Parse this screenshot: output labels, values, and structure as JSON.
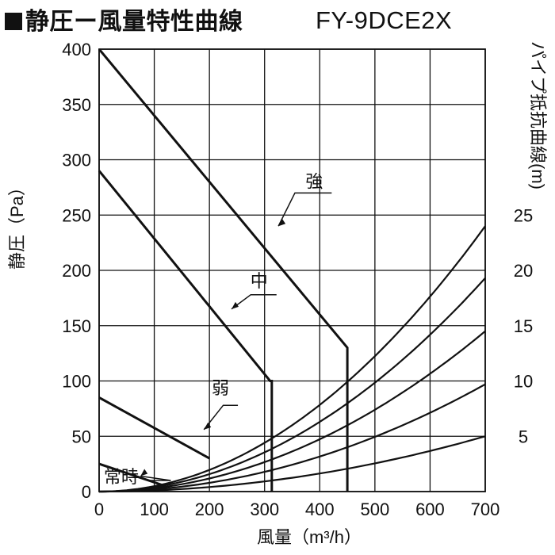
{
  "title": "静圧ー風量特性曲線",
  "model": "FY-9DCE2X",
  "chart_data": {
    "type": "line",
    "xlabel": "風量（m³/h）",
    "ylabel": "静圧（Pa）",
    "ylabel_right": "パイプ抵抗曲線(m)",
    "xlim": [
      0,
      700
    ],
    "ylim": [
      0,
      400
    ],
    "grid": true,
    "x_ticks": [
      0,
      100,
      200,
      300,
      400,
      500,
      600,
      700
    ],
    "y_ticks": [
      0,
      50,
      100,
      150,
      200,
      250,
      300,
      350,
      400
    ],
    "right_ticks": [
      {
        "label": "5",
        "y": 50
      },
      {
        "label": "10",
        "y": 100
      },
      {
        "label": "15",
        "y": 150
      },
      {
        "label": "20",
        "y": 200
      },
      {
        "label": "25",
        "y": 250
      }
    ],
    "series": [
      {
        "name": "強",
        "x": [
          0,
          450,
          450
        ],
        "y": [
          400,
          130,
          0
        ],
        "label_at": [
          390,
          275
        ],
        "leader_from": [
          325,
          240
        ],
        "leader_to": [
          355,
          270
        ]
      },
      {
        "name": "中",
        "x": [
          0,
          310,
          313,
          313
        ],
        "y": [
          290,
          100,
          100,
          0
        ],
        "label_at": [
          290,
          185
        ],
        "leader_from": [
          240,
          165
        ],
        "leader_to": [
          275,
          178
        ]
      },
      {
        "name": "弱",
        "x": [
          0,
          200,
          200
        ],
        "y": [
          85,
          30,
          30
        ],
        "label_at": [
          220,
          88
        ],
        "leader_from": [
          190,
          56
        ],
        "leader_to": [
          225,
          78
        ]
      },
      {
        "name": "常時",
        "x": [
          0,
          120
        ],
        "y": [
          25,
          5
        ],
        "label_at": [
          40,
          8
        ],
        "leader_from": [
          75,
          14
        ],
        "leader_to": [
          130,
          10
        ]
      }
    ],
    "pipe_resistance_curves": [
      {
        "length_m": 5,
        "y_at_700": 50
      },
      {
        "length_m": 10,
        "y_at_700": 97
      },
      {
        "length_m": 15,
        "y_at_700": 145
      },
      {
        "length_m": 20,
        "y_at_700": 193
      },
      {
        "length_m": 25,
        "y_at_700": 240
      }
    ]
  }
}
